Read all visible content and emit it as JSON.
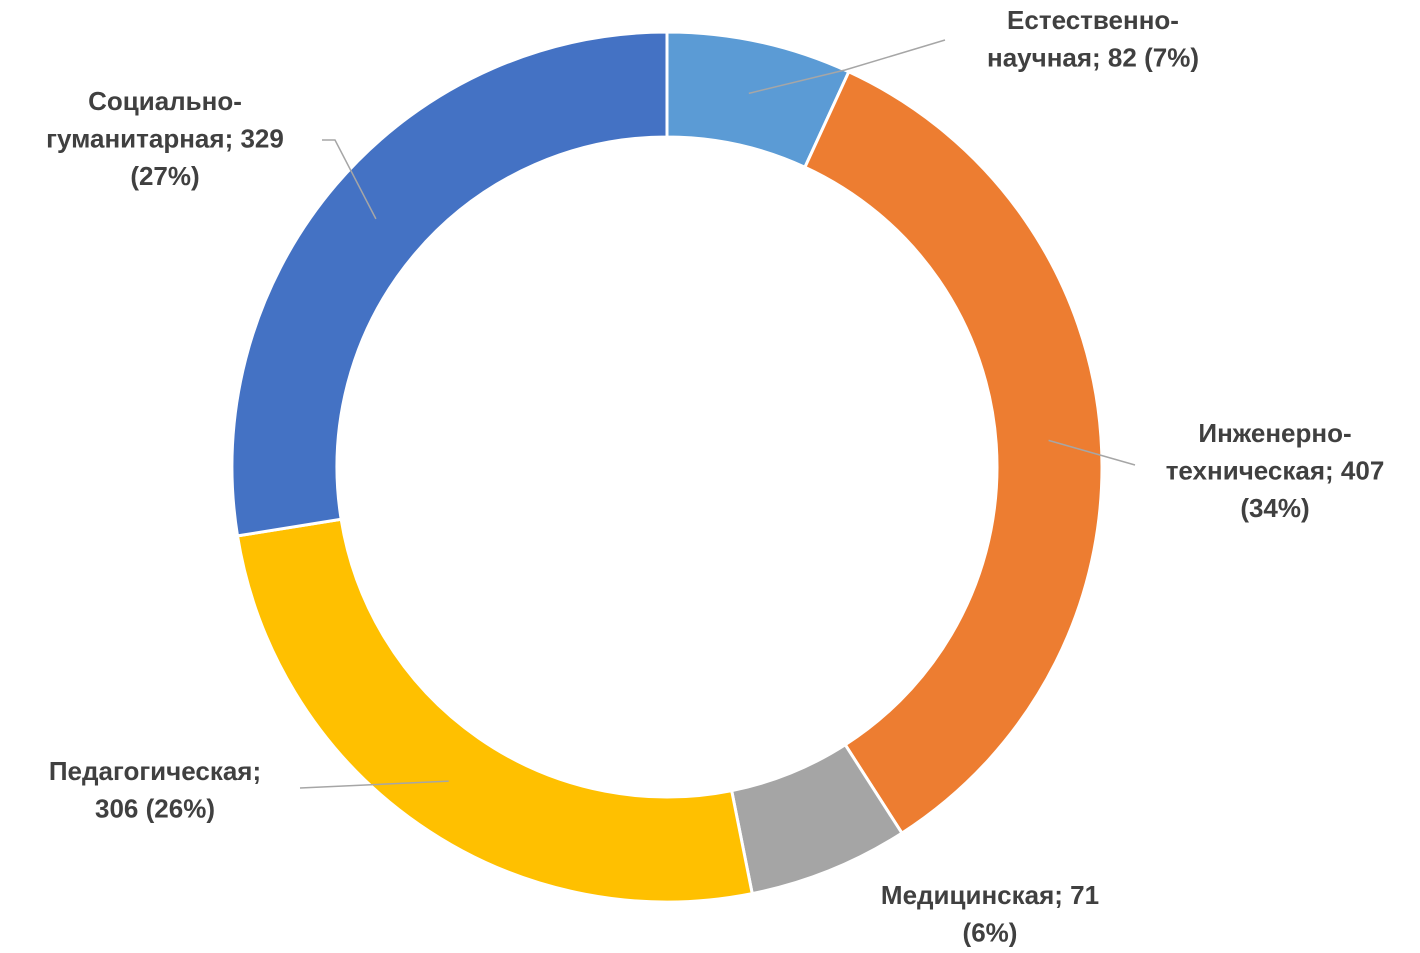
{
  "chart_data": {
    "type": "donut",
    "values": [
      82,
      407,
      71,
      306,
      329
    ],
    "value_labels": [
      [
        "Естественно-",
        "научная; 82 (7%)"
      ],
      [
        "Инженерно-",
        "техническая; 407",
        "(34%)"
      ],
      [
        "Медицинская; 71",
        "(6%)"
      ],
      [
        "Педагогическая;",
        "306 (26%)"
      ],
      [
        "Социально-",
        "гуманитарная; 329",
        "(27%)"
      ]
    ],
    "colors": [
      "#5b9bd5",
      "#ed7d31",
      "#a5a5a5",
      "#ffc000",
      "#4472c4"
    ]
  }
}
